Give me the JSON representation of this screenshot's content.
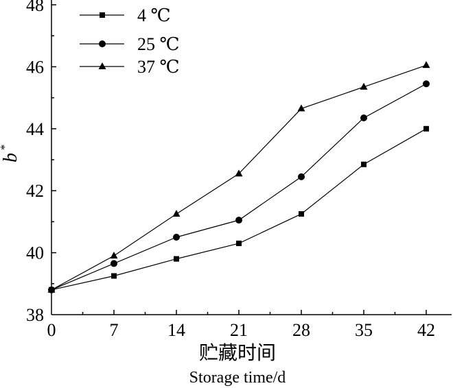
{
  "chart_data": {
    "type": "line",
    "x": [
      0,
      7,
      14,
      21,
      28,
      35,
      42
    ],
    "xticks": [
      "0",
      "7",
      "14",
      "21",
      "28",
      "35",
      "42"
    ],
    "yticks": [
      "38",
      "40",
      "42",
      "44",
      "46",
      "48"
    ],
    "xlim": [
      0,
      42
    ],
    "ylim": [
      38,
      48
    ],
    "xlabel_cn": "贮藏时间",
    "xlabel_en": "Storage time/d",
    "ylabel_main": "b",
    "ylabel_sup": "*",
    "grid": false,
    "legend_position": "top-left",
    "series": [
      {
        "name": "4 ℃",
        "marker": "square",
        "values": [
          38.8,
          39.25,
          39.8,
          40.3,
          41.25,
          42.85,
          44.0
        ]
      },
      {
        "name": "25 ℃",
        "marker": "circle",
        "values": [
          38.8,
          39.65,
          40.5,
          41.05,
          42.45,
          44.35,
          45.45
        ]
      },
      {
        "name": "37 ℃",
        "marker": "triangle",
        "values": [
          38.8,
          39.9,
          41.25,
          42.55,
          44.65,
          45.35,
          46.05
        ]
      }
    ]
  }
}
